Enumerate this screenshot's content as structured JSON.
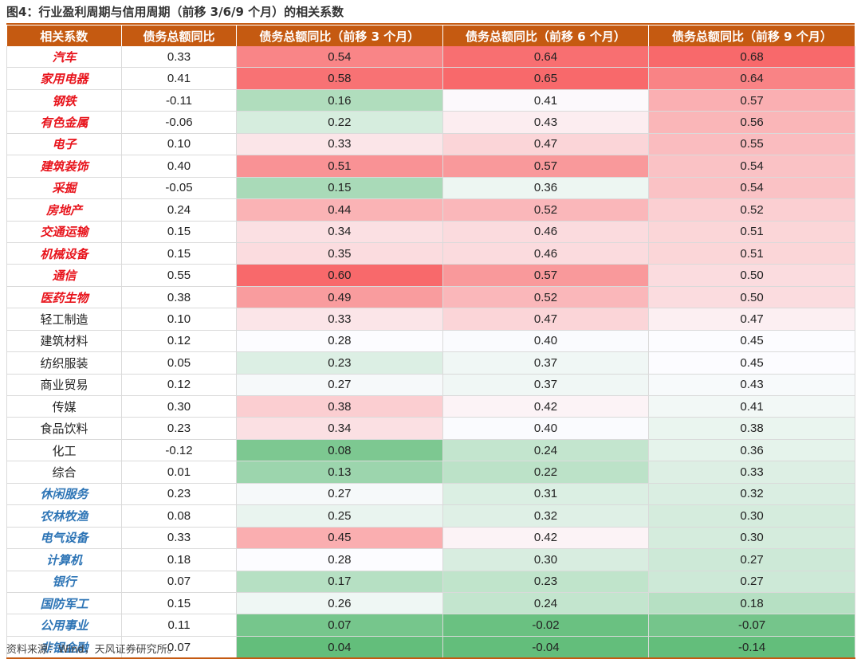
{
  "title": "图4：行业盈利周期与信用周期（前移 3/6/9 个月）的相关系数",
  "headers": [
    "相关系数",
    "债务总额同比",
    "债务总额同比（前移 3 个月）",
    "债务总额同比（前移 6 个月）",
    "债务总额同比（前移 9 个月）"
  ],
  "rows": [
    {
      "name": "汽车",
      "style": "red",
      "values": [
        "0.33",
        "0.54",
        "0.64",
        "0.68"
      ]
    },
    {
      "name": "家用电器",
      "style": "red",
      "values": [
        "0.41",
        "0.58",
        "0.65",
        "0.64"
      ]
    },
    {
      "name": "钢铁",
      "style": "red",
      "values": [
        "-0.11",
        "0.16",
        "0.41",
        "0.57"
      ]
    },
    {
      "name": "有色金属",
      "style": "red",
      "values": [
        "-0.06",
        "0.22",
        "0.43",
        "0.56"
      ]
    },
    {
      "name": "电子",
      "style": "red",
      "values": [
        "0.10",
        "0.33",
        "0.47",
        "0.55"
      ]
    },
    {
      "name": "建筑装饰",
      "style": "red",
      "values": [
        "0.40",
        "0.51",
        "0.57",
        "0.54"
      ]
    },
    {
      "name": "采掘",
      "style": "red",
      "values": [
        "-0.05",
        "0.15",
        "0.36",
        "0.54"
      ]
    },
    {
      "name": "房地产",
      "style": "red",
      "values": [
        "0.24",
        "0.44",
        "0.52",
        "0.52"
      ]
    },
    {
      "name": "交通运输",
      "style": "red",
      "values": [
        "0.15",
        "0.34",
        "0.46",
        "0.51"
      ]
    },
    {
      "name": "机械设备",
      "style": "red",
      "values": [
        "0.15",
        "0.35",
        "0.46",
        "0.51"
      ]
    },
    {
      "name": "通信",
      "style": "red",
      "values": [
        "0.55",
        "0.60",
        "0.57",
        "0.50"
      ]
    },
    {
      "name": "医药生物",
      "style": "red",
      "values": [
        "0.38",
        "0.49",
        "0.52",
        "0.50"
      ]
    },
    {
      "name": "轻工制造",
      "style": "plain",
      "values": [
        "0.10",
        "0.33",
        "0.47",
        "0.47"
      ]
    },
    {
      "name": "建筑材料",
      "style": "plain",
      "values": [
        "0.12",
        "0.28",
        "0.40",
        "0.45"
      ]
    },
    {
      "name": "纺织服装",
      "style": "plain",
      "values": [
        "0.05",
        "0.23",
        "0.37",
        "0.45"
      ]
    },
    {
      "name": "商业贸易",
      "style": "plain",
      "values": [
        "0.12",
        "0.27",
        "0.37",
        "0.43"
      ]
    },
    {
      "name": "传媒",
      "style": "plain",
      "values": [
        "0.30",
        "0.38",
        "0.42",
        "0.41"
      ]
    },
    {
      "name": "食品饮料",
      "style": "plain",
      "values": [
        "0.23",
        "0.34",
        "0.40",
        "0.38"
      ]
    },
    {
      "name": "化工",
      "style": "plain",
      "values": [
        "-0.12",
        "0.08",
        "0.24",
        "0.36"
      ]
    },
    {
      "name": "综合",
      "style": "plain",
      "values": [
        "0.01",
        "0.13",
        "0.22",
        "0.33"
      ]
    },
    {
      "name": "休闲服务",
      "style": "blue",
      "values": [
        "0.23",
        "0.27",
        "0.31",
        "0.32"
      ]
    },
    {
      "name": "农林牧渔",
      "style": "blue",
      "values": [
        "0.08",
        "0.25",
        "0.32",
        "0.30"
      ]
    },
    {
      "name": "电气设备",
      "style": "blue",
      "values": [
        "0.33",
        "0.45",
        "0.42",
        "0.30"
      ]
    },
    {
      "name": "计算机",
      "style": "blue",
      "values": [
        "0.18",
        "0.28",
        "0.30",
        "0.27"
      ]
    },
    {
      "name": "银行",
      "style": "blue",
      "values": [
        "0.07",
        "0.17",
        "0.23",
        "0.27"
      ]
    },
    {
      "name": "国防军工",
      "style": "blue",
      "values": [
        "0.15",
        "0.26",
        "0.24",
        "0.18"
      ]
    },
    {
      "name": "公用事业",
      "style": "blue",
      "values": [
        "0.11",
        "0.07",
        "-0.02",
        "-0.07"
      ]
    },
    {
      "name": "非银金融",
      "style": "blue",
      "values": [
        "0.07",
        "0.04",
        "-0.04",
        "-0.14"
      ]
    }
  ],
  "colors": {
    "header_bg": "#c55a11",
    "high": "#f8696b",
    "mid": "#fcfcff",
    "low": "#63be7b",
    "red_text": "#e8141c",
    "blue_text": "#2e75b6"
  },
  "source": "资料来源：Wind，天风证券研究所。"
}
